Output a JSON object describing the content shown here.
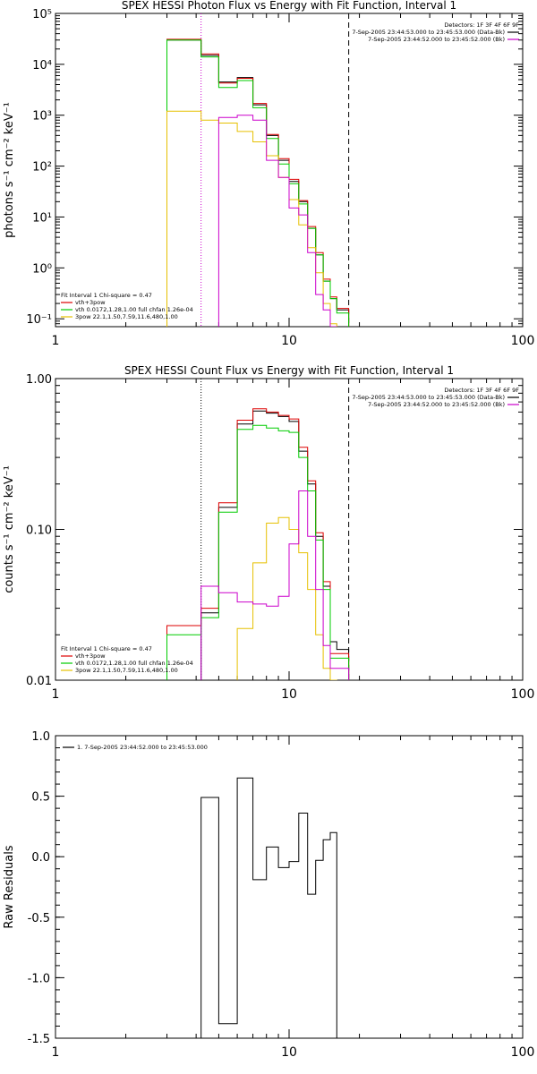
{
  "chart_data": [
    {
      "type": "line",
      "title": "SPEX HESSI Photon Flux vs Energy with Fit Function, Interval 1",
      "ylabel": "photons s⁻¹ cm⁻² keV⁻¹",
      "xscale": "log",
      "yscale": "log",
      "xlim": [
        1,
        100
      ],
      "ylim": [
        0.07,
        100000
      ],
      "x_ticks": [
        "1",
        "10",
        "100"
      ],
      "y_ticks": [
        "10⁻¹",
        "10⁰",
        "10¹",
        "10²",
        "10³",
        "10⁴",
        "10⁵"
      ],
      "vlines": [
        {
          "x": 4.2,
          "style": "dotted"
        },
        {
          "x": 18,
          "style": "dashed"
        }
      ],
      "legend_top_right": {
        "header": "Detectors: 1F 3F 4F 6F 9F",
        "entries": [
          {
            "text": "7-Sep-2005 23:44:53.000 to 23:45:53.000 (Data-Bk)",
            "color": "#000000"
          },
          {
            "text": "7-Sep-2005 23:44:52.000 to 23:45:52.000 (Bk)",
            "color": "#cc00cc"
          }
        ]
      },
      "legend_bottom_left": {
        "header": "Fit Interval 1    Chi-square = 0.47",
        "entries": [
          {
            "text": "vth+3pow",
            "color": "#dd0000"
          },
          {
            "text": "vth 0.0172,1.28,1.00  full chfan 1.26e-04",
            "color": "#00cc00"
          },
          {
            "text": "3pow 22.1,1.50,7.59,11.6,480,1.00",
            "color": "#e6c000"
          }
        ]
      },
      "bin_edges": [
        3,
        4.2,
        5,
        6,
        7,
        8,
        9,
        10,
        11,
        12,
        13,
        14,
        15,
        16,
        18
      ],
      "series": [
        {
          "color": "#000000",
          "values": [
            30000,
            15000,
            4500,
            5500,
            1600,
            400,
            130,
            50,
            20,
            6,
            1.8,
            0.55,
            0.25,
            0.15
          ]
        },
        {
          "color": "#dd0000",
          "values": [
            31000,
            16000,
            4300,
            5300,
            1700,
            420,
            140,
            55,
            21,
            6.5,
            2.0,
            0.6,
            0.27,
            0.16
          ]
        },
        {
          "color": "#00cc00",
          "values": [
            30000,
            14000,
            3500,
            4800,
            1400,
            350,
            110,
            45,
            18,
            6,
            1.8,
            0.55,
            0.25,
            0.13
          ]
        },
        {
          "color": "#e6c000",
          "values": [
            1200,
            800,
            700,
            480,
            300,
            160,
            60,
            22,
            7,
            2.5,
            0.8,
            0.2,
            0.08,
            null
          ]
        },
        {
          "color": "#cc00cc",
          "values": [
            null,
            null,
            900,
            1000,
            800,
            130,
            60,
            15,
            11,
            2,
            0.3,
            0.15,
            0.07,
            null
          ]
        }
      ]
    },
    {
      "type": "line",
      "title": "SPEX HESSI Count Flux vs Energy with Fit Function, Interval 1",
      "ylabel": "counts s⁻¹ cm⁻² keV⁻¹",
      "xscale": "log",
      "yscale": "log",
      "xlim": [
        1,
        100
      ],
      "ylim": [
        0.01,
        1.0
      ],
      "x_ticks": [
        "1",
        "10",
        "100"
      ],
      "y_ticks": [
        "0.01",
        "0.10",
        "1.00"
      ],
      "vlines": [
        {
          "x": 4.2,
          "style": "dotted"
        },
        {
          "x": 18,
          "style": "dashed"
        }
      ],
      "legend_top_right": {
        "header": "Detectors: 1F 3F 4F 6F 9F",
        "entries": [
          {
            "text": "7-Sep-2005 23:44:53.000 to 23:45:53.000 (Data-Bk)",
            "color": "#000000"
          },
          {
            "text": "7-Sep-2005 23:44:52.000 to 23:45:52.000 (Bk)",
            "color": "#cc00cc"
          }
        ]
      },
      "legend_bottom_left": {
        "header": "Fit Interval 1    Chi-square = 0.47",
        "entries": [
          {
            "text": "vth+3pow",
            "color": "#dd0000"
          },
          {
            "text": "vth 0.0172,1.28,1.00  full chfan 1.26e-04",
            "color": "#00cc00"
          },
          {
            "text": "3pow 22.1,1.50,7.59,11.6,480,1.00",
            "color": "#e6c000"
          }
        ]
      },
      "bin_edges": [
        3,
        4.2,
        5,
        6,
        7,
        8,
        9,
        10,
        11,
        12,
        13,
        14,
        15,
        16,
        18
      ],
      "series": [
        {
          "color": "#000000",
          "values": [
            null,
            0.028,
            0.14,
            0.5,
            0.61,
            0.59,
            0.56,
            0.52,
            0.33,
            0.2,
            0.09,
            0.042,
            0.018,
            0.016
          ]
        },
        {
          "color": "#dd0000",
          "values": [
            0.023,
            0.03,
            0.15,
            0.53,
            0.63,
            0.6,
            0.57,
            0.54,
            0.35,
            0.21,
            0.095,
            0.045,
            0.015,
            0.015
          ]
        },
        {
          "color": "#00cc00",
          "values": [
            0.02,
            0.026,
            0.13,
            0.46,
            0.49,
            0.47,
            0.45,
            0.44,
            0.3,
            0.18,
            0.085,
            0.04,
            0.014,
            0.014
          ]
        },
        {
          "color": "#e6c000",
          "values": [
            null,
            null,
            null,
            0.022,
            0.06,
            0.11,
            0.12,
            0.1,
            0.07,
            0.04,
            0.02,
            0.012,
            0.01,
            null
          ]
        },
        {
          "color": "#cc00cc",
          "values": [
            null,
            0.042,
            0.038,
            0.033,
            0.032,
            0.031,
            0.036,
            0.08,
            0.18,
            0.09,
            0.04,
            0.017,
            0.012,
            0.012
          ]
        }
      ]
    },
    {
      "type": "line",
      "title": "",
      "ylabel": "Raw Residuals",
      "xscale": "log",
      "yscale": "linear",
      "xlim": [
        1,
        100
      ],
      "ylim": [
        -1.5,
        1.0
      ],
      "x_ticks": [
        "1",
        "10",
        "100"
      ],
      "y_ticks": [
        "-1.5",
        "-1.0",
        "-0.5",
        "0.0",
        "0.5",
        "1.0"
      ],
      "legend_top_left": {
        "entries": [
          {
            "text": "1.  7-Sep-2005 23:44:52.000 to 23:45:53.000",
            "color": "#000000"
          }
        ]
      },
      "bin_edges": [
        4.2,
        5,
        6,
        7,
        8,
        9,
        10,
        11,
        12,
        13,
        14,
        15,
        16,
        18
      ],
      "series": [
        {
          "color": "#000000",
          "values": [
            0.49,
            -1.38,
            0.65,
            -0.19,
            0.08,
            -0.09,
            -0.04,
            0.36,
            -0.31,
            -0.03,
            0.14,
            0.2,
            null
          ]
        }
      ]
    }
  ]
}
